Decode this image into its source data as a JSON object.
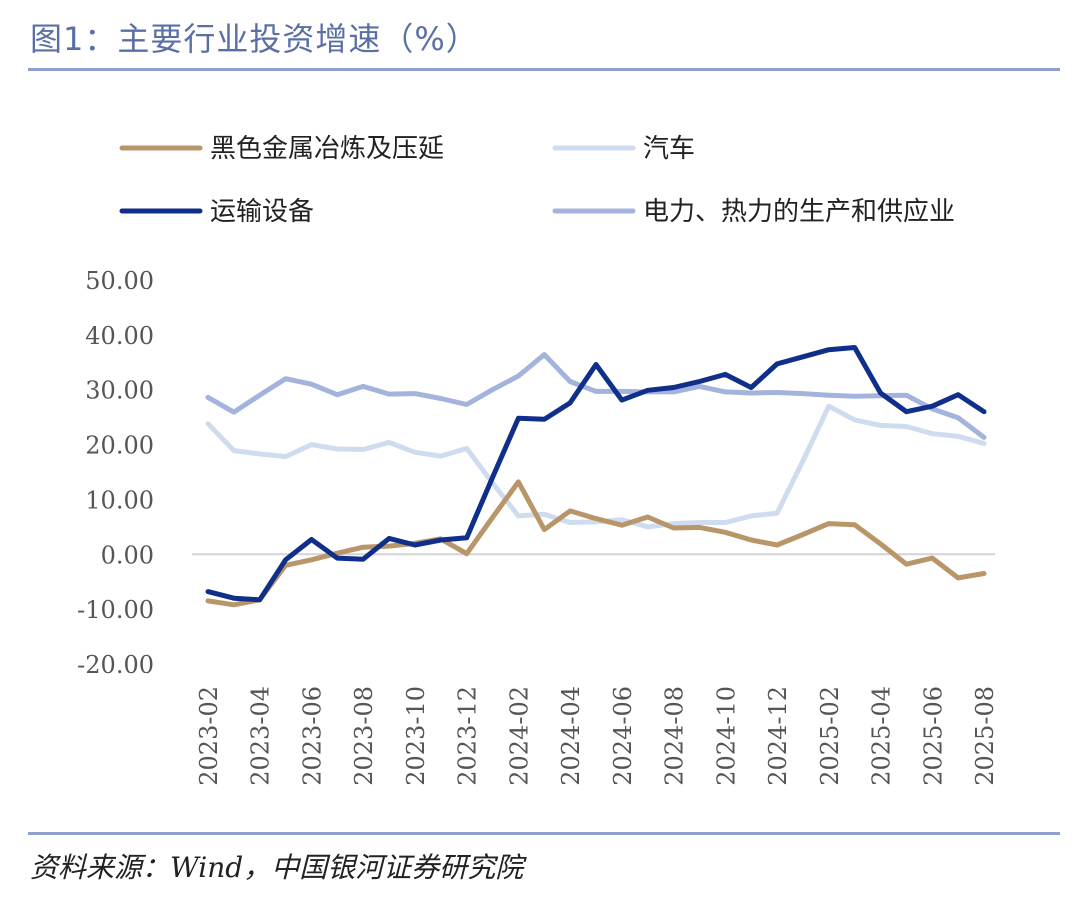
{
  "header": {
    "title": "图1：主要行业投资增速（%）"
  },
  "footer": {
    "source": "资料来源：Wind，中国银河证券研究院"
  },
  "chart_data": {
    "type": "line",
    "title": "主要行业投资增速（%）",
    "xlabel": "",
    "ylabel": "",
    "ylim": [
      -20,
      50
    ],
    "yticks": [
      50,
      40,
      30,
      20,
      10,
      0,
      -10,
      -20
    ],
    "ytick_labels": [
      "50.00",
      "40.00",
      "30.00",
      "20.00",
      "10.00",
      "0.00",
      "-10.00",
      "-20.00"
    ],
    "x": [
      "2023-02",
      "2023-03",
      "2023-04",
      "2023-05",
      "2023-06",
      "2023-07",
      "2023-08",
      "2023-09",
      "2023-10",
      "2023-11",
      "2023-12",
      "2024-01",
      "2024-02",
      "2024-03",
      "2024-04",
      "2024-05",
      "2024-06",
      "2024-07",
      "2024-08",
      "2024-09",
      "2024-10",
      "2024-11",
      "2024-12",
      "2025-01",
      "2025-02",
      "2025-03",
      "2025-04",
      "2025-05",
      "2025-06",
      "2025-07",
      "2025-08"
    ],
    "xtick_labels": [
      "2023-02",
      "2023-04",
      "2023-06",
      "2023-08",
      "2023-10",
      "2023-12",
      "2024-02",
      "2024-04",
      "2024-06",
      "2024-08",
      "2024-10",
      "2024-12",
      "2025-02",
      "2025-04",
      "2025-06",
      "2025-08"
    ],
    "series": [
      {
        "name": "黑色金属冶炼及压延",
        "color": "#b8966a",
        "values": [
          -8.5,
          -9.2,
          -8.3,
          -2.0,
          -1.0,
          0.2,
          1.3,
          1.5,
          2.0,
          2.8,
          0.1,
          6.7,
          13.2,
          4.5,
          7.9,
          6.5,
          5.3,
          6.8,
          4.8,
          4.9,
          4.0,
          2.6,
          1.7,
          3.6,
          5.6,
          5.4,
          1.9,
          -1.8,
          -0.7,
          -4.3,
          -3.5
        ]
      },
      {
        "name": "汽车",
        "color": "#cfdcef",
        "values": [
          23.8,
          18.9,
          18.3,
          17.8,
          20.0,
          19.2,
          19.1,
          20.4,
          18.6,
          17.9,
          19.3,
          13.0,
          7.0,
          7.3,
          5.8,
          5.9,
          6.3,
          5.0,
          5.6,
          5.8,
          5.8,
          7.0,
          7.5,
          17.0,
          27.0,
          24.5,
          23.5,
          23.3,
          22.0,
          21.5,
          20.2
        ]
      },
      {
        "name": "运输设备",
        "color": "#0f2f8a",
        "values": [
          -6.8,
          -8.0,
          -8.3,
          -1.0,
          2.7,
          -0.7,
          -0.9,
          2.9,
          1.7,
          2.6,
          3.0,
          14.0,
          24.8,
          24.6,
          27.6,
          34.6,
          28.1,
          29.9,
          30.4,
          31.5,
          32.8,
          30.4,
          34.7,
          36.0,
          37.3,
          37.7,
          29.4,
          26.0,
          27.0,
          29.1,
          26.0
        ]
      },
      {
        "name": "电力、热力的生产和供应业",
        "color": "#a4b3dc",
        "values": [
          28.6,
          25.9,
          29.0,
          32.0,
          31.0,
          29.1,
          30.6,
          29.2,
          29.3,
          28.4,
          27.3,
          30.0,
          32.5,
          36.4,
          31.5,
          29.7,
          29.7,
          29.6,
          29.6,
          30.6,
          29.6,
          29.4,
          29.5,
          29.3,
          29.0,
          28.8,
          28.9,
          29.0,
          26.5,
          24.9,
          21.3
        ]
      }
    ]
  }
}
